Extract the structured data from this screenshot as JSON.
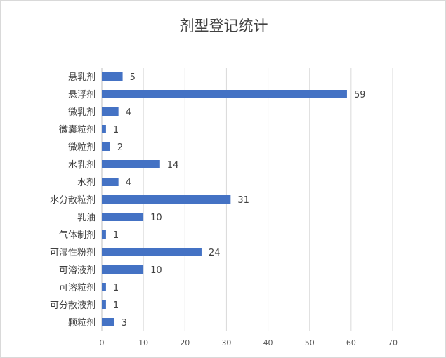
{
  "chart_data": {
    "type": "bar",
    "orientation": "horizontal",
    "title": "剂型登记统计",
    "categories": [
      "悬乳剂",
      "悬浮剂",
      "微乳剂",
      "微囊粒剂",
      "微粒剂",
      "水乳剂",
      "水剂",
      "水分散粒剂",
      "乳油",
      "气体制剂",
      "可湿性粉剂",
      "可溶液剂",
      "可溶粒剂",
      "可分散液剂",
      "颗粒剂"
    ],
    "values": [
      5,
      59,
      4,
      1,
      2,
      14,
      4,
      31,
      10,
      1,
      24,
      10,
      1,
      1,
      3
    ],
    "xlim": [
      0,
      70
    ],
    "xticks": [
      0,
      10,
      20,
      30,
      40,
      50,
      60,
      70
    ],
    "grid": true,
    "bar_color": "#4472c4",
    "grid_color": "#d9d9d9",
    "legend": "none"
  }
}
